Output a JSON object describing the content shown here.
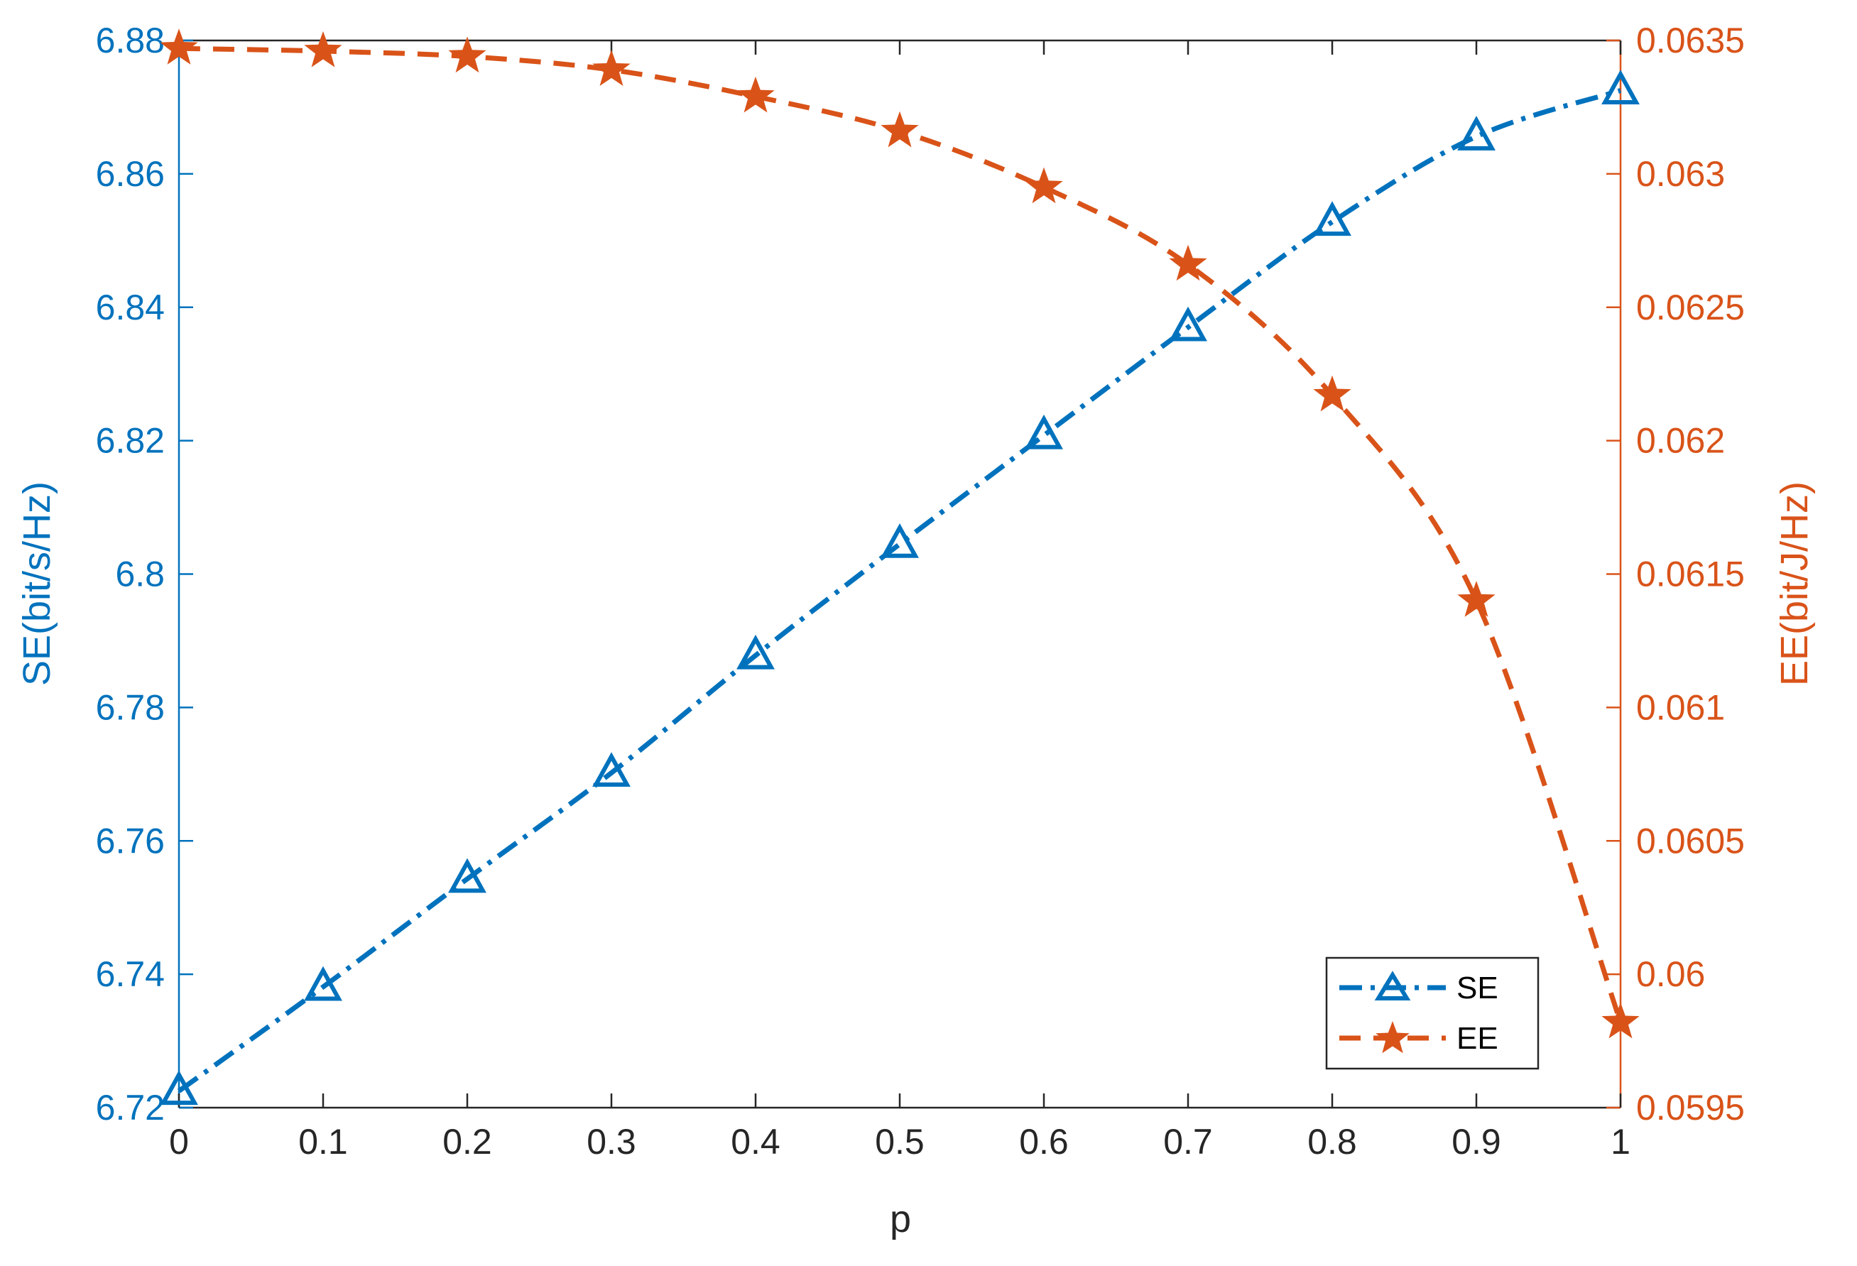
{
  "chart_data": {
    "type": "line",
    "xlabel": "p",
    "x": [
      0,
      0.1,
      0.2,
      0.3,
      0.4,
      0.5,
      0.6,
      0.7,
      0.8,
      0.9,
      1
    ],
    "x_ticks": [
      "0",
      "0.1",
      "0.2",
      "0.3",
      "0.4",
      "0.5",
      "0.6",
      "0.7",
      "0.8",
      "0.9",
      "1"
    ],
    "xlim": [
      0,
      1
    ],
    "left_axis": {
      "label": "SE(bit/s/Hz)",
      "ylim": [
        6.72,
        6.88
      ],
      "ticks": [
        6.72,
        6.74,
        6.76,
        6.78,
        6.8,
        6.82,
        6.84,
        6.86,
        6.88
      ],
      "tick_labels": [
        "6.72",
        "6.74",
        "6.76",
        "6.78",
        "6.8",
        "6.82",
        "6.84",
        "6.86",
        "6.88"
      ],
      "color": "#0072BD"
    },
    "right_axis": {
      "label": "EE(bit/J/Hz)",
      "ylim": [
        0.0595,
        0.0635
      ],
      "ticks": [
        0.0595,
        0.06,
        0.0605,
        0.061,
        0.0615,
        0.062,
        0.0625,
        0.063,
        0.0635
      ],
      "tick_labels": [
        "0.0595",
        "0.06",
        "0.0605",
        "0.061",
        "0.0615",
        "0.062",
        "0.0625",
        "0.063",
        "0.0635"
      ],
      "color": "#D95319"
    },
    "series": [
      {
        "name": "SE",
        "axis": "left",
        "color": "#0072BD",
        "line_style": "dash-dot",
        "marker": "triangle",
        "values": [
          6.7225,
          6.7381,
          6.7543,
          6.7702,
          6.7878,
          6.8045,
          6.8208,
          6.837,
          6.8528,
          6.8656,
          6.8725
        ]
      },
      {
        "name": "EE",
        "axis": "right",
        "color": "#D95319",
        "line_style": "dashed",
        "marker": "star",
        "values": [
          0.06347,
          0.06346,
          0.06344,
          0.06339,
          0.06329,
          0.06316,
          0.06295,
          0.06266,
          0.06217,
          0.0614,
          0.05982
        ]
      }
    ],
    "legend": {
      "position": "bottom-right",
      "entries": [
        "SE",
        "EE"
      ]
    },
    "grid": false
  }
}
